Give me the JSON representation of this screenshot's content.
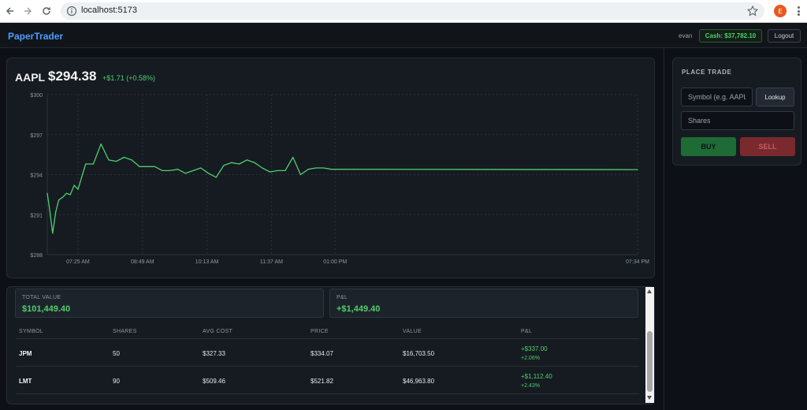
{
  "browser": {
    "url": "localhost:5173",
    "profile_initial": "E"
  },
  "header": {
    "brand": "PaperTrader",
    "username": "evan",
    "cash": "Cash: $37,782.10",
    "logout_label": "Logout"
  },
  "quote": {
    "symbol": "AAPL",
    "price": "$294.38",
    "change": "+$1.71 (+0.58%)"
  },
  "chart_data": {
    "type": "line",
    "title": "",
    "xlabel": "",
    "ylabel": "",
    "x_ticks": [
      "07:25 AM",
      "08:49 AM",
      "10:13 AM",
      "11:37 AM",
      "01:00 PM",
      "07:34 PM"
    ],
    "y_ticks": [
      "$300",
      "$297",
      "$294",
      "$291",
      "$288"
    ],
    "ylim": [
      288,
      300
    ],
    "grid": true,
    "line_color": "#4fcf6a",
    "series": [
      {
        "x": [
          "06:45 AM",
          "06:48 AM",
          "06:52 AM",
          "06:56 AM",
          "07:00 AM",
          "07:05 AM",
          "07:10 AM",
          "07:15 AM",
          "07:20 AM",
          "07:25 AM",
          "07:35 AM",
          "07:45 AM",
          "07:55 AM",
          "08:05 AM",
          "08:15 AM",
          "08:25 AM",
          "08:35 AM",
          "08:45 AM",
          "08:55 AM",
          "09:05 AM",
          "09:15 AM",
          "09:25 AM",
          "09:35 AM",
          "09:45 AM",
          "09:55 AM",
          "10:05 AM",
          "10:15 AM",
          "10:25 AM",
          "10:35 AM",
          "10:45 AM",
          "10:55 AM",
          "11:05 AM",
          "11:15 AM",
          "11:25 AM",
          "11:35 AM",
          "11:45 AM",
          "11:55 AM",
          "12:05 PM",
          "12:15 PM",
          "12:25 PM",
          "12:35 PM",
          "12:45 PM",
          "12:55 PM",
          "01:00 PM",
          "07:34 PM"
        ],
        "y": [
          292.6,
          291.4,
          289.6,
          291.2,
          292.1,
          292.3,
          292.6,
          292.5,
          293.2,
          292.9,
          294.8,
          294.8,
          296.3,
          295.1,
          295.0,
          295.3,
          295.1,
          294.6,
          294.6,
          294.6,
          294.3,
          294.3,
          294.4,
          294.1,
          294.3,
          294.5,
          294.1,
          293.8,
          294.7,
          294.9,
          294.8,
          295.1,
          294.9,
          294.5,
          294.2,
          294.3,
          294.3,
          295.3,
          294.0,
          294.4,
          294.5,
          294.5,
          294.4,
          294.4,
          294.38
        ]
      }
    ]
  },
  "trade": {
    "title": "PLACE TRADE",
    "symbol_placeholder": "Symbol (e.g. AAPL)",
    "lookup_label": "Lookup",
    "shares_placeholder": "Shares",
    "buy_label": "BUY",
    "sell_label": "SELL"
  },
  "portfolio": {
    "total_value_label": "TOTAL VALUE",
    "total_value": "$101,449.40",
    "pl_label": "P&L",
    "pl_value": "+$1,449.40",
    "columns": [
      "SYMBOL",
      "SHARES",
      "AVG COST",
      "PRICE",
      "VALUE",
      "P&L"
    ],
    "rows": [
      {
        "symbol": "JPM",
        "shares": "50",
        "avg_cost": "$327.33",
        "price": "$334.07",
        "value": "$16,703.50",
        "pl": "+$337.00",
        "pl_pct": "+2.06%"
      },
      {
        "symbol": "LMT",
        "shares": "90",
        "avg_cost": "$509.46",
        "price": "$521.82",
        "value": "$46,963.80",
        "pl": "+$1,112.40",
        "pl_pct": "+2.43%"
      }
    ]
  }
}
